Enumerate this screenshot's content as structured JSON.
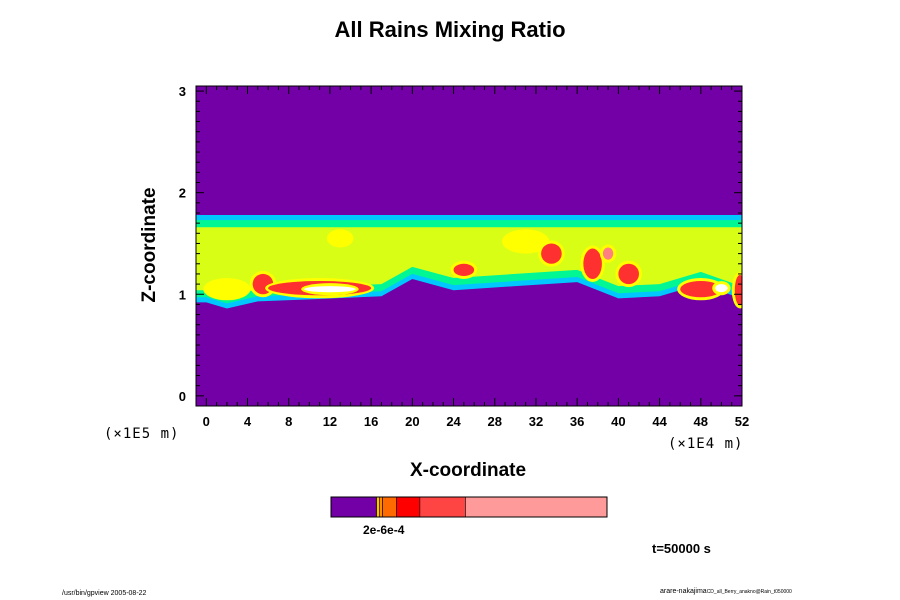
{
  "chart_data": {
    "type": "heatmap",
    "title": "All Rains Mixing Ratio",
    "xlabel": "X-coordinate",
    "ylabel": "Z-coordinate",
    "x_unit": "(×1E4 m)",
    "y_unit": "(×1E5 m)",
    "xlim": [
      -1,
      52
    ],
    "ylim": [
      -0.1,
      3.05
    ],
    "x_ticks": [
      "0",
      "4",
      "8",
      "12",
      "16",
      "20",
      "24",
      "28",
      "32",
      "36",
      "40",
      "44",
      "48",
      "52"
    ],
    "y_ticks": [
      "0",
      "1",
      "2",
      "3"
    ],
    "background_color": "#7300a6",
    "band": {
      "top_z": 1.78,
      "bottom_z_profile": [
        {
          "x": 0,
          "z": 0.92
        },
        {
          "x": 2,
          "z": 0.86
        },
        {
          "x": 5,
          "z": 0.93
        },
        {
          "x": 10,
          "z": 0.95
        },
        {
          "x": 17,
          "z": 0.98
        },
        {
          "x": 20,
          "z": 1.15
        },
        {
          "x": 24,
          "z": 1.04
        },
        {
          "x": 30,
          "z": 1.08
        },
        {
          "x": 36,
          "z": 1.12
        },
        {
          "x": 40,
          "z": 0.96
        },
        {
          "x": 44,
          "z": 0.98
        },
        {
          "x": 48,
          "z": 1.1
        },
        {
          "x": 52,
          "z": 0.92
        }
      ]
    },
    "cells": [
      {
        "x": 2.0,
        "z": 1.05,
        "w": 4.0,
        "h": 0.16,
        "level": 3
      },
      {
        "x": 5.5,
        "z": 1.1,
        "w": 2.0,
        "h": 0.2,
        "level": 4
      },
      {
        "x": 11.0,
        "z": 1.06,
        "w": 10.0,
        "h": 0.14,
        "level": 4
      },
      {
        "x": 12.0,
        "z": 1.05,
        "w": 5.0,
        "h": 0.06,
        "level": 6
      },
      {
        "x": 13.0,
        "z": 1.55,
        "w": 2.0,
        "h": 0.12,
        "level": 3
      },
      {
        "x": 25.0,
        "z": 1.24,
        "w": 2.0,
        "h": 0.12,
        "level": 4
      },
      {
        "x": 31.0,
        "z": 1.52,
        "w": 4.0,
        "h": 0.18,
        "level": 3
      },
      {
        "x": 33.5,
        "z": 1.4,
        "w": 2.0,
        "h": 0.2,
        "level": 4
      },
      {
        "x": 37.5,
        "z": 1.3,
        "w": 1.8,
        "h": 0.3,
        "level": 4
      },
      {
        "x": 39.0,
        "z": 1.4,
        "w": 1.0,
        "h": 0.12,
        "level": 5
      },
      {
        "x": 41.0,
        "z": 1.2,
        "w": 2.0,
        "h": 0.2,
        "level": 4
      },
      {
        "x": 48.0,
        "z": 1.05,
        "w": 4.0,
        "h": 0.16,
        "level": 4
      },
      {
        "x": 50.0,
        "z": 1.06,
        "w": 1.2,
        "h": 0.08,
        "level": 6
      },
      {
        "x": 51.8,
        "z": 1.04,
        "w": 1.0,
        "h": 0.3,
        "level": 4
      }
    ],
    "colorbar": {
      "segments": [
        {
          "color": "#7300a6",
          "fraction": 0.165
        },
        {
          "color": "#ffc400",
          "fraction": 0.01
        },
        {
          "color": "#ff8c00",
          "fraction": 0.012
        },
        {
          "color": "#ff6a00",
          "fraction": 0.05
        },
        {
          "color": "#ff0000",
          "fraction": 0.085
        },
        {
          "color": "#ff4444",
          "fraction": 0.165
        },
        {
          "color": "#ff9a9a",
          "fraction": 0.513
        }
      ],
      "labels_text": "2e-6e-4"
    },
    "level_colors": [
      "#7300a6",
      "#00c8ff",
      "#00ff80",
      "#ffff00",
      "#ff3030",
      "#ff8080",
      "#ffffff"
    ]
  },
  "annotations": {
    "time": "t=50000 s",
    "footer_left": "/usr/bin/gpview 2005-08-22",
    "footer_main": "arare-nakajima",
    "footer_small": "CD_all_Berry_anakno@Rain_t050000"
  }
}
